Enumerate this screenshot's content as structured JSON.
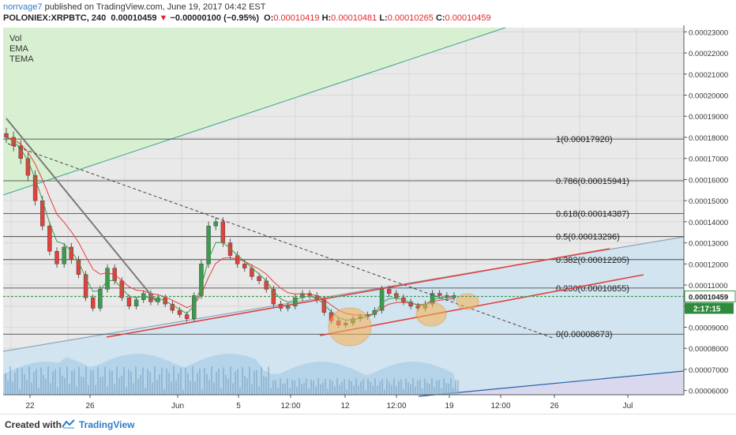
{
  "header": {
    "author": "norrvage7",
    "published_text": "published on TradingView.com, June 19, 2017 04:42 EST",
    "symbol": "POLONIEX:XRPBTC, 240",
    "last": "0.00010459",
    "change_arrow": "▼",
    "change": "−0.00000100 (−0.95%)",
    "open_label": "O:",
    "open": "0.00010419",
    "high_label": "H:",
    "high": "0.00010481",
    "low_label": "L:",
    "low": "0.00010265",
    "close_label": "C:",
    "close": "0.00010459"
  },
  "indicators": [
    "Vol",
    "EMA",
    "TEMA"
  ],
  "footer": {
    "created_with": "Created with",
    "brand": "TradingView"
  },
  "colors": {
    "up": "#3c9b4e",
    "down": "#e0413d",
    "ema": "#e0413d",
    "tema": "#3c9b4e",
    "fib_line": "#333333",
    "support": "#e0413d",
    "price_line": "#3c9b4e",
    "channel_green_fill": "#d6efcf",
    "channel_blue_fill": "#cfe3f1",
    "volume": "#9cc6e6"
  },
  "chart_data": {
    "type": "candlestick",
    "yaxis": {
      "min": 5.8e-05,
      "max": 0.000232,
      "ticks": [
        "0.00023000",
        "0.00022000",
        "0.00021000",
        "0.00020000",
        "0.00019000",
        "0.00018000",
        "0.00017000",
        "0.00016000",
        "0.00015000",
        "0.00014000",
        "0.00013000",
        "0.00012000",
        "0.00011000",
        "0.00010000",
        "0.00009000",
        "0.00008000",
        "0.00007000",
        "0.00006000"
      ]
    },
    "xaxis": {
      "tick_labels": [
        "22",
        "26",
        "Jun",
        "5",
        "12:00",
        "12",
        "12:00",
        "19",
        "12:00",
        "26",
        "Jul"
      ]
    },
    "price_label": "0.00010459",
    "countdown": "2:17:15",
    "fib_levels": [
      {
        "ratio": "1",
        "value": 0.0001792,
        "label": "1(0.00017920)"
      },
      {
        "ratio": "0.786",
        "value": 0.00015941,
        "label": "0.786(0.00015941)"
      },
      {
        "ratio": "0.618",
        "value": 0.00014387,
        "label": "0.618(0.00014387)"
      },
      {
        "ratio": "0.5",
        "value": 0.00013296,
        "label": "0.5(0.00013296)"
      },
      {
        "ratio": "0.382",
        "value": 0.00012205,
        "label": "0.382(0.00012205)"
      },
      {
        "ratio": "0.236",
        "value": 0.00010855,
        "label": "0.236(0.00010855)"
      },
      {
        "ratio": "0",
        "value": 8.673e-05,
        "label": "0(0.00008673)"
      }
    ],
    "close_series": [
      0.00018,
      0.000176,
      0.00017,
      0.000162,
      0.00015,
      0.000138,
      0.000126,
      0.00012,
      0.000128,
      0.000122,
      0.000115,
      0.000104,
      9.9e-05,
      0.000108,
      0.000118,
      0.000112,
      0.000104,
      0.0001,
      0.000103,
      0.000106,
      0.000102,
      0.000104,
      0.000101,
      9.8e-05,
      9.6e-05,
      9.4e-05,
      0.000105,
      0.00012,
      0.000138,
      0.00014,
      0.00013,
      0.000124,
      0.00012,
      0.000118,
      0.000114,
      0.000112,
      0.000108,
      0.000101,
      9.9e-05,
      0.0001,
      0.000104,
      0.000106,
      0.000105,
      0.000103,
      9.7e-05,
      9.3e-05,
      9.1e-05,
      9.2e-05,
      9.4e-05,
      9.5e-05,
      9.6e-05,
      9.8e-05,
      0.000108,
      0.000106,
      0.000104,
      0.000102,
      0.0001,
      9.9e-05,
      0.000101,
      0.000106,
      0.000105,
      0.000104,
      0.000105
    ]
  }
}
